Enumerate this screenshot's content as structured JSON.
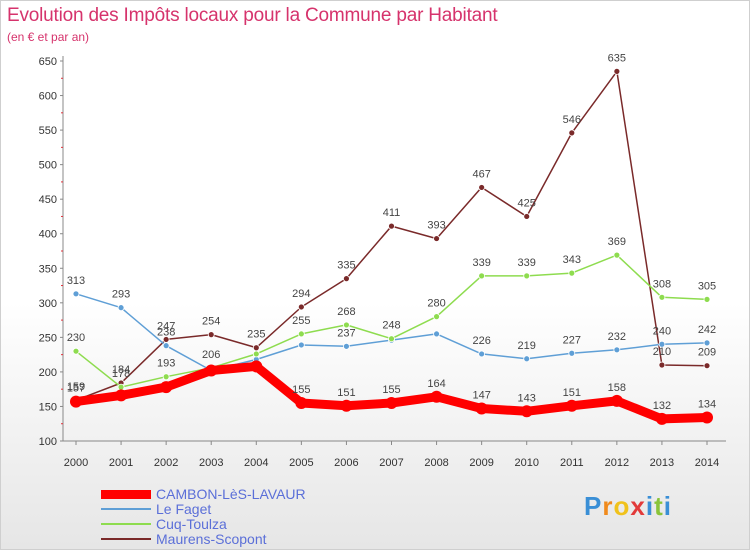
{
  "header": {
    "title": "Evolution des Impôts locaux pour la Commune par Habitant",
    "subtitle": "(en € et par an)"
  },
  "brand": {
    "text": "Proxiti"
  },
  "colors": {
    "title": "#d6336c",
    "legend_text": "#5b6fd8",
    "axis": "#888888"
  },
  "chart_data": {
    "type": "line",
    "title": "Evolution des Impôts locaux pour la Commune par Habitant",
    "subtitle": "(en € et par an)",
    "x": [
      "2000",
      "2001",
      "2002",
      "2003",
      "2004",
      "2005",
      "2006",
      "2007",
      "2008",
      "2009",
      "2010",
      "2011",
      "2012",
      "2013",
      "2014"
    ],
    "ylim": [
      100,
      650
    ],
    "yticks": [
      "100",
      "150",
      "200",
      "250",
      "300",
      "350",
      "400",
      "450",
      "500",
      "550",
      "600",
      "650"
    ],
    "grid": false,
    "legend_position": "bottom-left",
    "series": [
      {
        "name": "CAMBON-LèS-LAVAUR",
        "color": "#ff0000",
        "values": [
          157,
          166,
          178,
          202,
          208,
          155,
          151,
          155,
          164,
          147,
          143,
          151,
          158,
          132,
          134
        ],
        "labels": [
          "157",
          "",
          "",
          "",
          "",
          "155",
          "151",
          "155",
          "164",
          "147",
          "143",
          "151",
          "158",
          "132",
          "134"
        ]
      },
      {
        "name": "Le Faget",
        "color": "#5f9fd6",
        "values": [
          313,
          293,
          238,
          202,
          218,
          239,
          237,
          246,
          255,
          226,
          219,
          227,
          232,
          240,
          242
        ],
        "labels": [
          "313",
          "293",
          "238",
          "",
          "",
          "",
          "237",
          "",
          "",
          "226",
          "219",
          "227",
          "232",
          "240",
          "242"
        ]
      },
      {
        "name": "Cuq-Toulza",
        "color": "#8edc4f",
        "values": [
          230,
          178,
          193,
          206,
          226,
          255,
          268,
          248,
          280,
          339,
          339,
          343,
          369,
          308,
          305
        ],
        "labels": [
          "230",
          "178",
          "193",
          "206",
          "",
          "255",
          "268",
          "248",
          "280",
          "339",
          "339",
          "343",
          "369",
          "308",
          "305"
        ]
      },
      {
        "name": "Maurens-Scopont",
        "color": "#7a2a2a",
        "values": [
          159,
          184,
          247,
          254,
          235,
          294,
          335,
          411,
          393,
          467,
          425,
          546,
          635,
          210,
          209
        ],
        "labels": [
          "159",
          "184",
          "247",
          "254",
          "235",
          "294",
          "335",
          "411",
          "393",
          "467",
          "425",
          "546",
          "635",
          "210",
          "209"
        ]
      }
    ]
  }
}
